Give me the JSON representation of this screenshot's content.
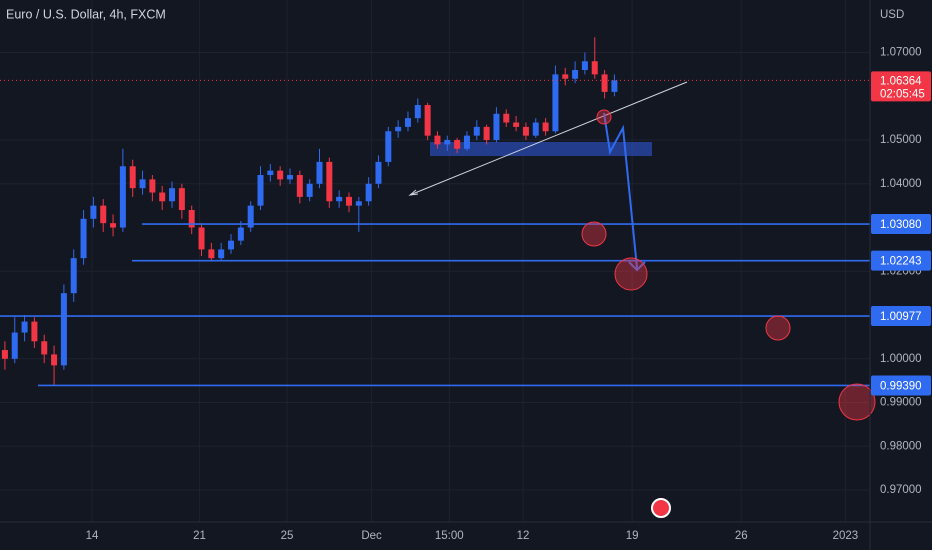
{
  "chart_data": {
    "type": "candlestick",
    "title": "Euro / U.S. Dollar, 4h, FXCM",
    "currency": "USD",
    "up_color": "#2f6bf0",
    "down_color": "#f23645",
    "candles": [
      [
        1.002,
        1.004,
        0.9975,
        1.0
      ],
      [
        1.0,
        1.0095,
        0.999,
        1.006
      ],
      [
        1.006,
        1.01,
        1.004,
        1.0085
      ],
      [
        1.0085,
        1.0095,
        1.0025,
        1.004
      ],
      [
        1.004,
        1.0055,
        0.999,
        1.001
      ],
      [
        1.001,
        1.003,
        0.9939,
        0.9985
      ],
      [
        0.9985,
        1.017,
        0.9975,
        1.015
      ],
      [
        1.015,
        1.025,
        1.013,
        1.023
      ],
      [
        1.023,
        1.034,
        1.0215,
        1.032
      ],
      [
        1.032,
        1.037,
        1.03,
        1.035
      ],
      [
        1.035,
        1.0365,
        1.029,
        1.031
      ],
      [
        1.031,
        1.033,
        1.028,
        1.03
      ],
      [
        1.03,
        1.048,
        1.029,
        1.044
      ],
      [
        1.044,
        1.0455,
        1.037,
        1.039
      ],
      [
        1.039,
        1.043,
        1.0375,
        1.041
      ],
      [
        1.041,
        1.042,
        1.036,
        1.038
      ],
      [
        1.038,
        1.0395,
        1.034,
        1.036
      ],
      [
        1.036,
        1.0405,
        1.0345,
        1.039
      ],
      [
        1.039,
        1.04,
        1.032,
        1.034
      ],
      [
        1.034,
        1.035,
        1.0285,
        1.03
      ],
      [
        1.03,
        1.031,
        1.0235,
        1.025
      ],
      [
        1.025,
        1.0265,
        1.0222,
        1.023
      ],
      [
        1.023,
        1.0265,
        1.0225,
        1.025
      ],
      [
        1.025,
        1.0285,
        1.024,
        1.027
      ],
      [
        1.027,
        1.0315,
        1.026,
        1.03
      ],
      [
        1.03,
        1.036,
        1.029,
        1.035
      ],
      [
        1.035,
        1.044,
        1.034,
        1.042
      ],
      [
        1.042,
        1.0445,
        1.0405,
        1.043
      ],
      [
        1.043,
        1.044,
        1.0395,
        1.041
      ],
      [
        1.041,
        1.0435,
        1.04,
        1.042
      ],
      [
        1.042,
        1.043,
        1.0355,
        1.037
      ],
      [
        1.037,
        1.041,
        1.036,
        1.04
      ],
      [
        1.04,
        1.048,
        1.039,
        1.045
      ],
      [
        1.045,
        1.046,
        1.0345,
        1.036
      ],
      [
        1.036,
        1.0385,
        1.0345,
        1.037
      ],
      [
        1.037,
        1.038,
        1.0335,
        1.035
      ],
      [
        1.035,
        1.037,
        1.029,
        1.036
      ],
      [
        1.036,
        1.0415,
        1.035,
        1.04
      ],
      [
        1.04,
        1.0465,
        1.039,
        1.045
      ],
      [
        1.045,
        1.053,
        1.044,
        1.052
      ],
      [
        1.052,
        1.0545,
        1.0505,
        1.053
      ],
      [
        1.053,
        1.0565,
        1.052,
        1.055
      ],
      [
        1.055,
        1.0595,
        1.054,
        1.058
      ],
      [
        1.058,
        1.0585,
        1.05,
        1.051
      ],
      [
        1.051,
        1.052,
        1.048,
        1.049
      ],
      [
        1.049,
        1.051,
        1.0475,
        1.05
      ],
      [
        1.05,
        1.0505,
        1.047,
        1.048
      ],
      [
        1.048,
        1.052,
        1.0475,
        1.051
      ],
      [
        1.051,
        1.0545,
        1.05,
        1.053
      ],
      [
        1.053,
        1.0535,
        1.049,
        1.05
      ],
      [
        1.05,
        1.0575,
        1.0495,
        1.056
      ],
      [
        1.056,
        1.057,
        1.053,
        1.054
      ],
      [
        1.054,
        1.0555,
        1.052,
        1.053
      ],
      [
        1.053,
        1.054,
        1.05,
        1.051
      ],
      [
        1.051,
        1.055,
        1.0505,
        1.054
      ],
      [
        1.054,
        1.055,
        1.051,
        1.052
      ],
      [
        1.052,
        1.067,
        1.0515,
        1.065
      ],
      [
        1.065,
        1.0665,
        1.0625,
        1.064
      ],
      [
        1.064,
        1.068,
        1.063,
        1.066
      ],
      [
        1.066,
        1.07,
        1.065,
        1.068
      ],
      [
        1.068,
        1.0735,
        1.064,
        1.065
      ],
      [
        1.065,
        1.066,
        1.0595,
        1.061
      ],
      [
        1.061,
        1.065,
        1.06,
        1.06364
      ]
    ],
    "xlim": [
      -0.5,
      88
    ],
    "xticks": [
      {
        "value": 8.86,
        "label": "14"
      },
      {
        "value": 19.8,
        "label": "21"
      },
      {
        "value": 28.7,
        "label": "25"
      },
      {
        "value": 37.3,
        "label": "Dec"
      },
      {
        "value": 45.2,
        "label": "15:00"
      },
      {
        "value": 52.7,
        "label": "12"
      },
      {
        "value": 63.8,
        "label": "19"
      },
      {
        "value": 74.9,
        "label": "26"
      },
      {
        "value": 85.5,
        "label": "2023"
      }
    ],
    "ylim": [
      0.9627,
      1.082
    ],
    "yticks": [
      {
        "value": 1.07,
        "label": "1.07000"
      },
      {
        "value": 1.05,
        "label": "1.05000"
      },
      {
        "value": 1.04,
        "label": "1.04000"
      },
      {
        "value": 1.02,
        "label": "1.02000"
      },
      {
        "value": 1.0,
        "label": "1.00000"
      },
      {
        "value": 0.99,
        "label": "0.99000"
      },
      {
        "value": 0.98,
        "label": "0.98000"
      },
      {
        "value": 0.97,
        "label": "0.97000"
      }
    ],
    "grid": true,
    "levels": [
      {
        "value": 1.0308,
        "label": "1.03080"
      },
      {
        "value": 1.02243,
        "label": "1.02243"
      },
      {
        "value": 1.00977,
        "label": "1.00977"
      },
      {
        "value": 0.9939,
        "label": "0.99390"
      }
    ],
    "last_price": 1.06364,
    "countdown": "02:05:45"
  }
}
